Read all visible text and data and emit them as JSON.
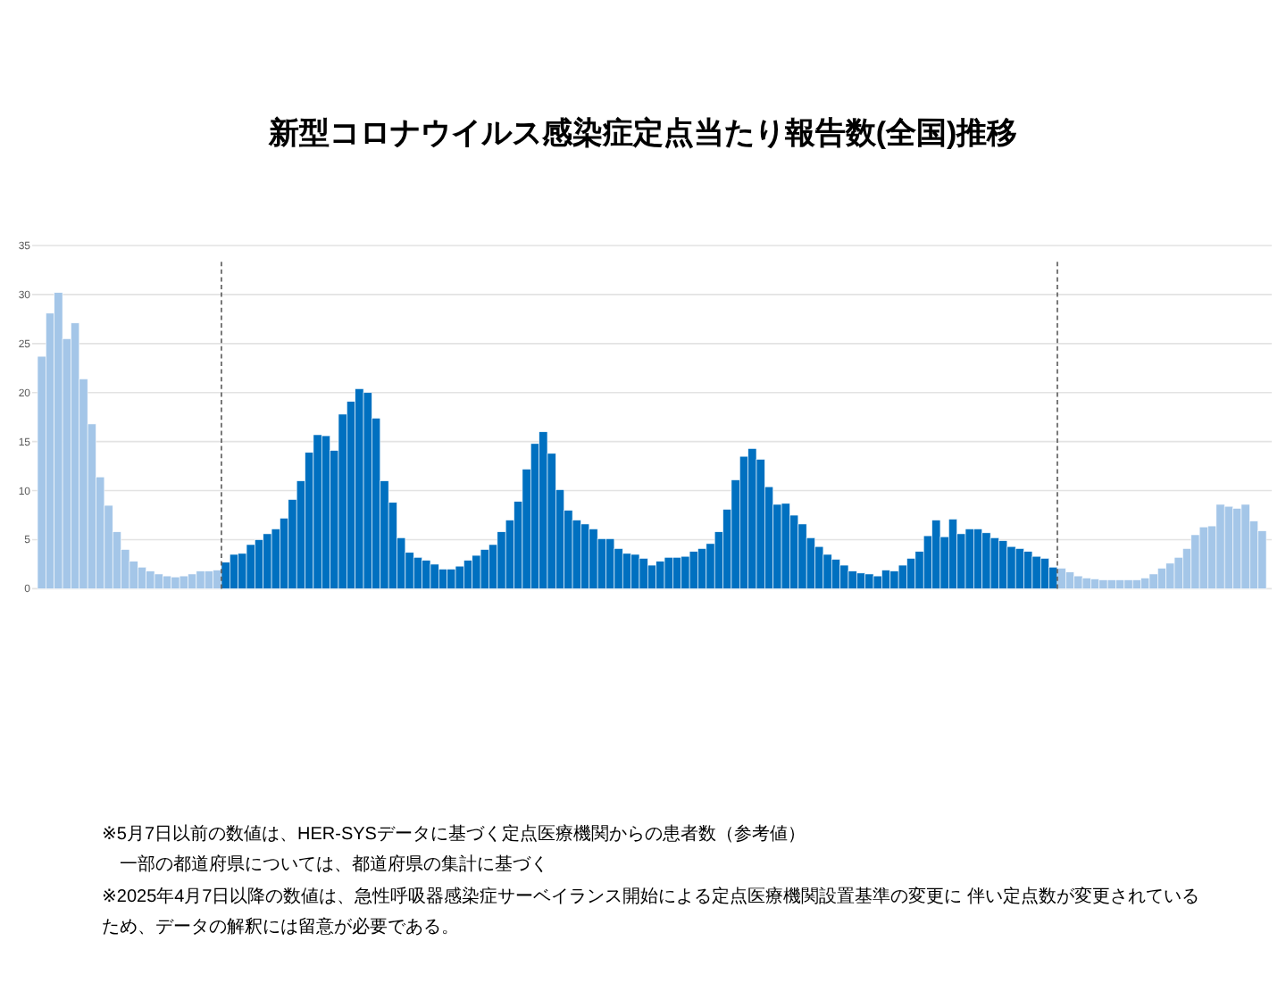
{
  "chart_data": {
    "type": "bar",
    "title": "新型コロナウイルス感染症定点当たり報告数(全国)推移",
    "categories": [
      null,
      null,
      null,
      null,
      null,
      null,
      null,
      null,
      null,
      null,
      null,
      null,
      null,
      null,
      null,
      null,
      null,
      null,
      null,
      null,
      null,
      null,
      null,
      null,
      null,
      null,
      null,
      null,
      null,
      null,
      null,
      null,
      null,
      null,
      null,
      null,
      null,
      null,
      null,
      null,
      null,
      null,
      null,
      null,
      null,
      null,
      null,
      null,
      null,
      null,
      null,
      null,
      null,
      null,
      null,
      null,
      null,
      null,
      null,
      null,
      null,
      null,
      null,
      null,
      null,
      null,
      null,
      null,
      null,
      null,
      null,
      null,
      null,
      null,
      null,
      null,
      null,
      null,
      null,
      null,
      null,
      null,
      null,
      null,
      null,
      null,
      null,
      null,
      null,
      null,
      null,
      null,
      null,
      null,
      null,
      null,
      null,
      null,
      null,
      null,
      null,
      null,
      null,
      null,
      null,
      null,
      null,
      null,
      null,
      null,
      null,
      null,
      null,
      null,
      null,
      null,
      null,
      null,
      null,
      null,
      null,
      null,
      null,
      null,
      null,
      null,
      null,
      null,
      null,
      null,
      null,
      null,
      null,
      null,
      null,
      null,
      null,
      null,
      null,
      null,
      null,
      null,
      null,
      null,
      null,
      null,
      null
    ],
    "values": [
      23.7,
      28.1,
      30.2,
      25.5,
      27.1,
      21.4,
      16.8,
      11.4,
      8.5,
      5.8,
      4.0,
      2.8,
      2.2,
      1.8,
      1.5,
      1.3,
      1.2,
      1.3,
      1.5,
      1.8,
      1.8,
      1.9,
      2.7,
      3.5,
      3.6,
      4.5,
      5.0,
      5.6,
      6.1,
      7.2,
      9.1,
      11.0,
      13.9,
      15.7,
      15.6,
      14.1,
      17.8,
      19.1,
      20.4,
      20.0,
      17.4,
      11.0,
      8.8,
      5.2,
      3.7,
      3.2,
      2.9,
      2.5,
      2.0,
      2.0,
      2.3,
      2.9,
      3.4,
      4.0,
      4.5,
      5.8,
      7.0,
      8.9,
      12.2,
      14.8,
      16.0,
      13.8,
      10.1,
      8.0,
      7.0,
      6.6,
      6.1,
      5.1,
      5.1,
      4.1,
      3.6,
      3.5,
      3.1,
      2.4,
      2.8,
      3.2,
      3.2,
      3.3,
      3.8,
      4.1,
      4.6,
      5.8,
      8.1,
      11.1,
      13.5,
      14.3,
      13.2,
      10.4,
      8.6,
      8.7,
      7.5,
      6.6,
      5.2,
      4.3,
      3.5,
      3.0,
      2.4,
      1.8,
      1.6,
      1.5,
      1.3,
      1.9,
      1.8,
      2.4,
      3.1,
      3.8,
      5.4,
      7.0,
      5.3,
      7.1,
      5.6,
      6.1,
      6.1,
      5.7,
      5.2,
      4.9,
      4.3,
      4.1,
      3.8,
      3.3,
      3.1,
      2.2,
      2.1,
      1.7,
      1.3,
      1.1,
      1.0,
      0.9,
      0.9,
      0.9,
      0.9,
      0.9,
      1.1,
      1.5,
      2.1,
      2.6,
      3.2,
      4.1,
      5.5,
      6.3,
      6.4,
      8.6,
      8.4,
      8.2,
      8.6,
      6.9,
      5.9
    ],
    "colors": [
      "#a4c6e8",
      "#a4c6e8",
      "#a4c6e8",
      "#a4c6e8",
      "#a4c6e8",
      "#a4c6e8",
      "#a4c6e8",
      "#a4c6e8",
      "#a4c6e8",
      "#a4c6e8",
      "#a4c6e8",
      "#a4c6e8",
      "#a4c6e8",
      "#a4c6e8",
      "#a4c6e8",
      "#a4c6e8",
      "#a4c6e8",
      "#a4c6e8",
      "#a4c6e8",
      "#a4c6e8",
      "#a4c6e8",
      "#a4c6e8",
      "#0070c0",
      "#0070c0",
      "#0070c0",
      "#0070c0",
      "#0070c0",
      "#0070c0",
      "#0070c0",
      "#0070c0",
      "#0070c0",
      "#0070c0",
      "#0070c0",
      "#0070c0",
      "#0070c0",
      "#0070c0",
      "#0070c0",
      "#0070c0",
      "#0070c0",
      "#0070c0",
      "#0070c0",
      "#0070c0",
      "#0070c0",
      "#0070c0",
      "#0070c0",
      "#0070c0",
      "#0070c0",
      "#0070c0",
      "#0070c0",
      "#0070c0",
      "#0070c0",
      "#0070c0",
      "#0070c0",
      "#0070c0",
      "#0070c0",
      "#0070c0",
      "#0070c0",
      "#0070c0",
      "#0070c0",
      "#0070c0",
      "#0070c0",
      "#0070c0",
      "#0070c0",
      "#0070c0",
      "#0070c0",
      "#0070c0",
      "#0070c0",
      "#0070c0",
      "#0070c0",
      "#0070c0",
      "#0070c0",
      "#0070c0",
      "#0070c0",
      "#0070c0",
      "#0070c0",
      "#0070c0",
      "#0070c0",
      "#0070c0",
      "#0070c0",
      "#0070c0",
      "#0070c0",
      "#0070c0",
      "#0070c0",
      "#0070c0",
      "#0070c0",
      "#0070c0",
      "#0070c0",
      "#0070c0",
      "#0070c0",
      "#0070c0",
      "#0070c0",
      "#0070c0",
      "#0070c0",
      "#0070c0",
      "#0070c0",
      "#0070c0",
      "#0070c0",
      "#0070c0",
      "#0070c0",
      "#0070c0",
      "#0070c0",
      "#0070c0",
      "#0070c0",
      "#0070c0",
      "#0070c0",
      "#0070c0",
      "#0070c0",
      "#0070c0",
      "#0070c0",
      "#0070c0",
      "#0070c0",
      "#0070c0",
      "#0070c0",
      "#0070c0",
      "#0070c0",
      "#0070c0",
      "#0070c0",
      "#0070c0",
      "#0070c0",
      "#0070c0",
      "#0070c0",
      "#0070c0",
      "#a4c6e8",
      "#a4c6e8",
      "#a4c6e8",
      "#a4c6e8",
      "#a4c6e8",
      "#a4c6e8",
      "#a4c6e8",
      "#a4c6e8",
      "#a4c6e8",
      "#a4c6e8",
      "#a4c6e8",
      "#a4c6e8",
      "#a4c6e8",
      "#a4c6e8",
      "#a4c6e8",
      "#a4c6e8",
      "#a4c6e8",
      "#a4c6e8",
      "#a4c6e8",
      "#a4c6e8",
      "#a4c6e8",
      "#a4c6e8",
      "#a4c6e8",
      "#a4c6e8",
      "#a4c6e8"
    ],
    "ylim": [
      0,
      35
    ],
    "yticks": [
      0,
      5,
      10,
      15,
      20,
      25,
      30,
      35
    ],
    "grid": "y",
    "annotations": [
      "※5月7日以前の数値は、HER-SYSデータに基づく定点医療機関からの患者数（参考値）",
      "　一部の都道府県については、都道府県の集計に基づく",
      "※2025年4月7日以降の数値は、急性呼吸器感染症サーベイランス開始による定点医療機関設置基準の変更に 伴い定点数が変更されているため、データの解釈には留意が必要である。"
    ]
  }
}
